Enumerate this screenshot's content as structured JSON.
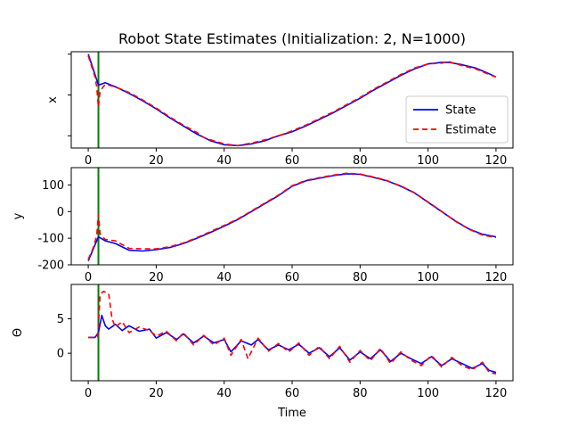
{
  "chart_data": {
    "title": "Robot State Estimates (Initialization: 2, N=1000)",
    "type": "line",
    "marker_color": "#008000",
    "marker_x": 3,
    "panels": [
      {
        "id": "x",
        "ylabel": "x",
        "xlim": [
          -5,
          125
        ],
        "ylim": [
          -0.15,
          1.03
        ],
        "show_x_ticklabels": true,
        "show_y_ticklabels": false,
        "x_ticks": [
          0,
          20,
          40,
          60,
          80,
          100,
          120
        ],
        "y_ticks": [
          0,
          0.5,
          1.0
        ],
        "legend": {
          "placement": "lower right"
        },
        "series": [
          {
            "name": "State",
            "color": "#0000ff",
            "dash": "",
            "x": [
              0,
              2,
              3,
              5,
              8,
              12,
              16,
              20,
              24,
              28,
              32,
              36,
              40,
              44,
              48,
              52,
              56,
              60,
              64,
              68,
              72,
              76,
              80,
              84,
              88,
              92,
              96,
              100,
              104,
              106,
              110,
              114,
              118,
              120
            ],
            "y": [
              1.0,
              0.75,
              0.62,
              0.65,
              0.6,
              0.52,
              0.43,
              0.33,
              0.22,
              0.12,
              0.02,
              -0.06,
              -0.11,
              -0.12,
              -0.1,
              -0.06,
              0.0,
              0.05,
              0.12,
              0.2,
              0.28,
              0.37,
              0.46,
              0.56,
              0.65,
              0.74,
              0.82,
              0.88,
              0.9,
              0.9,
              0.87,
              0.83,
              0.76,
              0.72
            ]
          },
          {
            "name": "Estimate",
            "color": "#ff0000",
            "dash": "6,4",
            "x": [
              0,
              2,
              2.5,
              3,
              3.5,
              5,
              8,
              12,
              16,
              20,
              24,
              28,
              32,
              34,
              36,
              40,
              44,
              48,
              52,
              56,
              60,
              64,
              68,
              72,
              76,
              80,
              84,
              88,
              92,
              96,
              100,
              104,
              106,
              110,
              114,
              118,
              120
            ],
            "y": [
              0.98,
              0.72,
              0.6,
              0.35,
              0.55,
              0.63,
              0.6,
              0.53,
              0.44,
              0.34,
              0.23,
              0.13,
              0.04,
              -0.02,
              -0.05,
              -0.1,
              -0.12,
              -0.09,
              -0.05,
              0.0,
              0.06,
              0.13,
              0.21,
              0.29,
              0.38,
              0.47,
              0.57,
              0.66,
              0.75,
              0.83,
              0.88,
              0.89,
              0.91,
              0.86,
              0.82,
              0.75,
              0.72
            ]
          }
        ]
      },
      {
        "id": "y",
        "ylabel": "y",
        "xlim": [
          -5,
          125
        ],
        "ylim": [
          -200,
          165
        ],
        "show_x_ticklabels": true,
        "show_y_ticklabels": true,
        "x_ticks": [
          0,
          20,
          40,
          60,
          80,
          100,
          120
        ],
        "y_ticks": [
          -200,
          -100,
          0,
          100
        ],
        "series": [
          {
            "name": "State",
            "color": "#0000ff",
            "dash": "",
            "x": [
              0,
              1.5,
              3,
              5,
              8,
              12,
              16,
              20,
              24,
              28,
              32,
              36,
              40,
              44,
              48,
              52,
              56,
              60,
              64,
              68,
              72,
              76,
              80,
              84,
              88,
              92,
              96,
              100,
              104,
              108,
              112,
              116,
              120
            ],
            "y": [
              -185,
              -140,
              -95,
              -110,
              -120,
              -145,
              -148,
              -143,
              -135,
              -120,
              -100,
              -78,
              -55,
              -30,
              0,
              30,
              60,
              95,
              115,
              125,
              135,
              142,
              140,
              128,
              115,
              95,
              70,
              35,
              0,
              -35,
              -65,
              -85,
              -95
            ]
          },
          {
            "name": "Estimate",
            "color": "#ff0000",
            "dash": "6,4",
            "x": [
              0,
              1.5,
              2.5,
              3,
              3.5,
              5,
              8,
              12,
              16,
              20,
              24,
              28,
              32,
              36,
              40,
              44,
              48,
              52,
              56,
              60,
              64,
              68,
              72,
              76,
              80,
              84,
              88,
              92,
              96,
              100,
              104,
              108,
              112,
              116,
              120
            ],
            "y": [
              -180,
              -135,
              -90,
              -10,
              -85,
              -105,
              -110,
              -138,
              -140,
              -140,
              -132,
              -118,
              -98,
              -75,
              -52,
              -28,
              2,
              32,
              62,
              97,
              117,
              127,
              137,
              144,
              141,
              130,
              116,
              96,
              71,
              36,
              1,
              -36,
              -66,
              -88,
              -98
            ]
          }
        ]
      },
      {
        "id": "theta",
        "ylabel": "Θ",
        "xlabel": "Time",
        "xlim": [
          -5,
          125
        ],
        "ylim": [
          -4,
          10
        ],
        "show_x_ticklabels": true,
        "show_y_ticklabels": true,
        "x_ticks": [
          0,
          20,
          40,
          60,
          80,
          100,
          120
        ],
        "y_ticks": [
          0,
          5
        ],
        "series": [
          {
            "name": "State",
            "color": "#0000ff",
            "dash": "",
            "x": [
              0,
              2,
              3,
              4,
              5,
              6,
              8,
              10,
              12,
              15,
              18,
              20,
              23,
              26,
              28,
              31,
              34,
              37,
              40,
              42,
              45,
              48,
              50,
              53,
              56,
              59,
              62,
              65,
              68,
              71,
              74,
              77,
              80,
              83,
              86,
              89,
              92,
              95,
              98,
              101,
              104,
              107,
              110,
              113,
              116,
              118,
              120
            ],
            "y": [
              2.3,
              2.3,
              3.0,
              5.5,
              4.0,
              3.5,
              4.2,
              3.3,
              4.0,
              3.2,
              3.5,
              2.2,
              3.0,
              2.0,
              2.8,
              1.5,
              2.5,
              1.5,
              2.0,
              0.2,
              1.8,
              1.2,
              2.0,
              0.5,
              1.2,
              0.5,
              1.3,
              0.0,
              0.8,
              -0.5,
              0.8,
              -1.0,
              0.2,
              -0.8,
              0.5,
              -1.2,
              0.0,
              -0.8,
              -1.5,
              -0.5,
              -1.8,
              -0.8,
              -1.5,
              -2.2,
              -1.5,
              -2.5,
              -2.8
            ]
          },
          {
            "name": "Estimate",
            "color": "#ff0000",
            "dash": "6,4",
            "x": [
              0,
              2,
              2.8,
              3.5,
              4.5,
              6,
              7,
              8,
              10,
              12,
              15,
              18,
              20,
              23,
              26,
              28,
              31,
              34,
              37,
              40,
              42,
              45,
              47,
              50,
              53,
              56,
              59,
              62,
              65,
              68,
              71,
              74,
              77,
              80,
              83,
              86,
              89,
              92,
              95,
              98,
              101,
              104,
              107,
              110,
              113,
              116,
              118,
              120
            ],
            "y": [
              2.3,
              2.3,
              2.4,
              8.5,
              9.0,
              8.7,
              5.0,
              3.8,
              4.6,
              3.0,
              3.8,
              3.3,
              2.5,
              3.2,
              1.8,
              3.0,
              1.2,
              2.6,
              1.2,
              2.2,
              -0.3,
              2.0,
              -0.8,
              2.2,
              0.3,
              1.4,
              0.2,
              1.5,
              -0.3,
              1.0,
              -0.8,
              1.0,
              -1.3,
              0.4,
              -1.1,
              0.7,
              -1.5,
              0.2,
              -1.0,
              -1.8,
              -0.3,
              -2.0,
              -0.6,
              -1.8,
              -2.4,
              -1.3,
              -2.8,
              -3.0
            ]
          }
        ]
      }
    ]
  }
}
